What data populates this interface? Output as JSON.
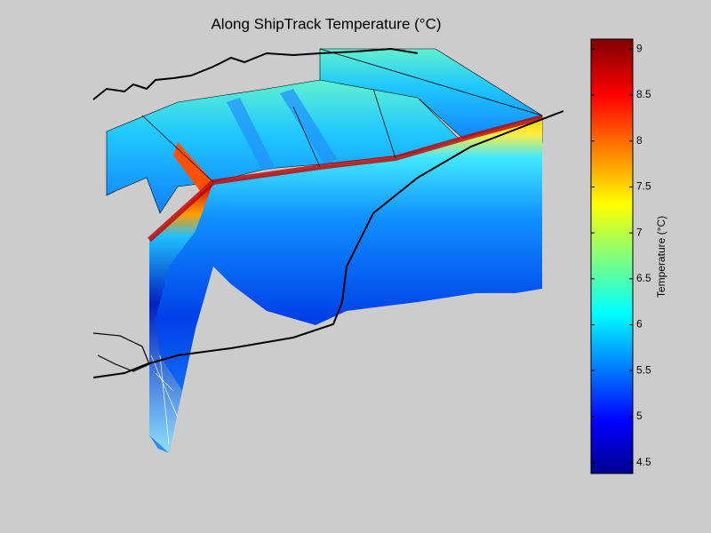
{
  "chart_data": {
    "type": "colorbar-surface",
    "title": "Along ShipTrack Temperature (°C)",
    "colorbar": {
      "label": "Temperature (°C)",
      "clim": [
        4.38,
        9.11
      ],
      "ticks": [
        4.5,
        5,
        5.5,
        6,
        6.5,
        7,
        7.5,
        8,
        8.5,
        9
      ]
    }
  }
}
